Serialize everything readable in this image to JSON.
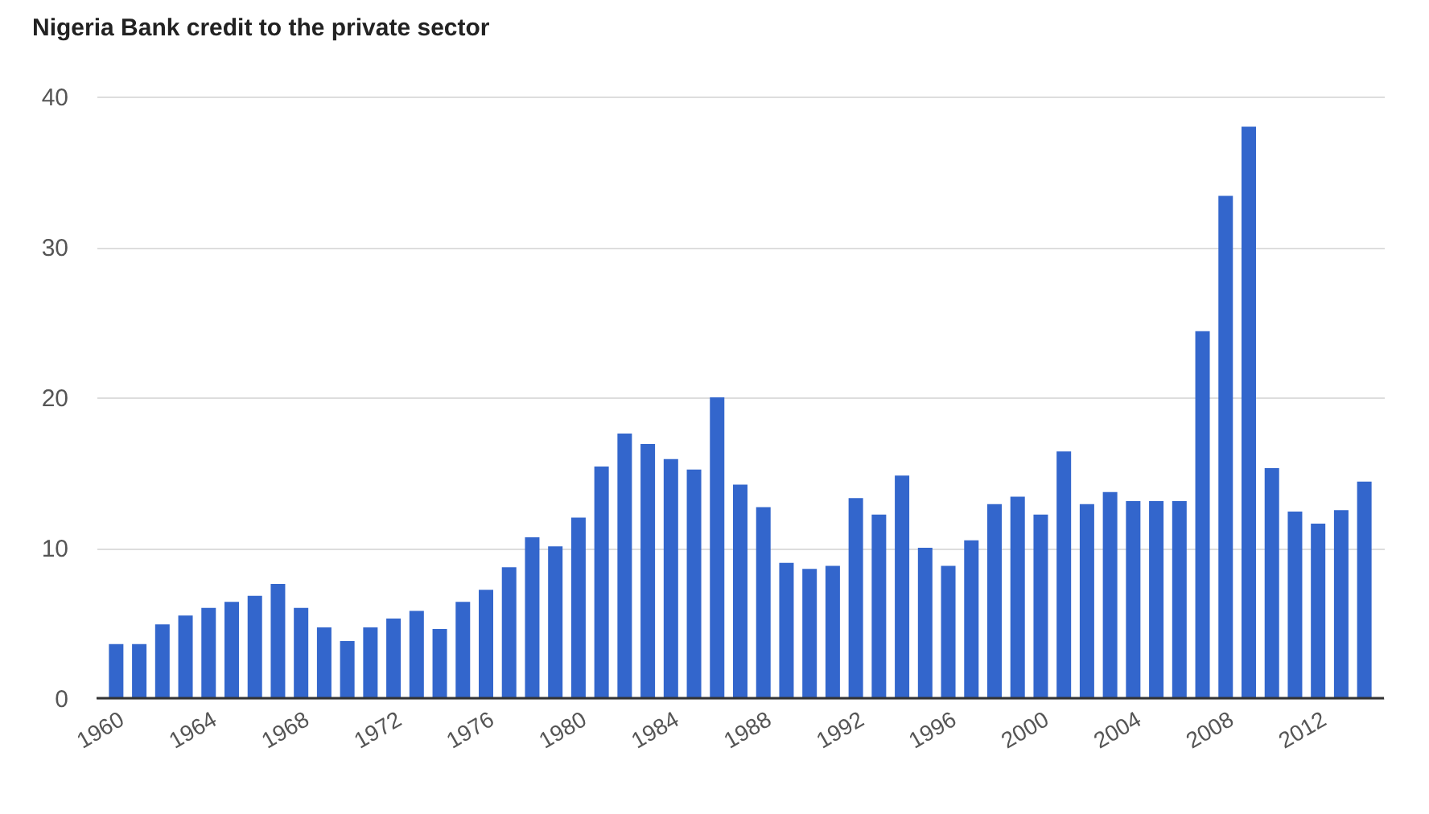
{
  "chart_data": {
    "type": "bar",
    "title": "Nigeria Bank credit to the private sector",
    "x": [
      1960,
      1961,
      1962,
      1963,
      1964,
      1965,
      1966,
      1967,
      1968,
      1969,
      1970,
      1971,
      1972,
      1973,
      1974,
      1975,
      1976,
      1977,
      1978,
      1979,
      1980,
      1981,
      1982,
      1983,
      1984,
      1985,
      1986,
      1987,
      1988,
      1989,
      1990,
      1991,
      1992,
      1993,
      1994,
      1995,
      1996,
      1997,
      1998,
      1999,
      2000,
      2001,
      2002,
      2003,
      2004,
      2005,
      2006,
      2007,
      2008,
      2009,
      2010,
      2011,
      2012,
      2013,
      2014
    ],
    "values": [
      3.6,
      3.6,
      4.9,
      5.5,
      6.0,
      6.4,
      6.8,
      7.6,
      6.0,
      4.7,
      3.8,
      4.7,
      5.3,
      5.8,
      4.6,
      6.4,
      7.2,
      8.7,
      10.7,
      10.1,
      12.0,
      15.4,
      17.6,
      16.9,
      15.9,
      15.2,
      20.0,
      14.2,
      12.7,
      9.0,
      8.6,
      8.8,
      13.3,
      12.2,
      14.8,
      10.0,
      8.8,
      10.5,
      12.9,
      13.4,
      12.2,
      16.4,
      12.9,
      13.7,
      13.1,
      13.1,
      13.1,
      24.4,
      33.4,
      38.0,
      15.3,
      12.4,
      11.6,
      12.5,
      14.4
    ],
    "color": "#3366cc",
    "xlim": [
      1959.5,
      2014.5
    ],
    "xticks": [
      1960,
      1964,
      1968,
      1972,
      1976,
      1980,
      1984,
      1988,
      1992,
      1996,
      2000,
      2004,
      2008,
      2012
    ],
    "ylim": [
      0,
      40
    ],
    "yticks": [
      0,
      10,
      20,
      30,
      40
    ],
    "grid": "y"
  }
}
